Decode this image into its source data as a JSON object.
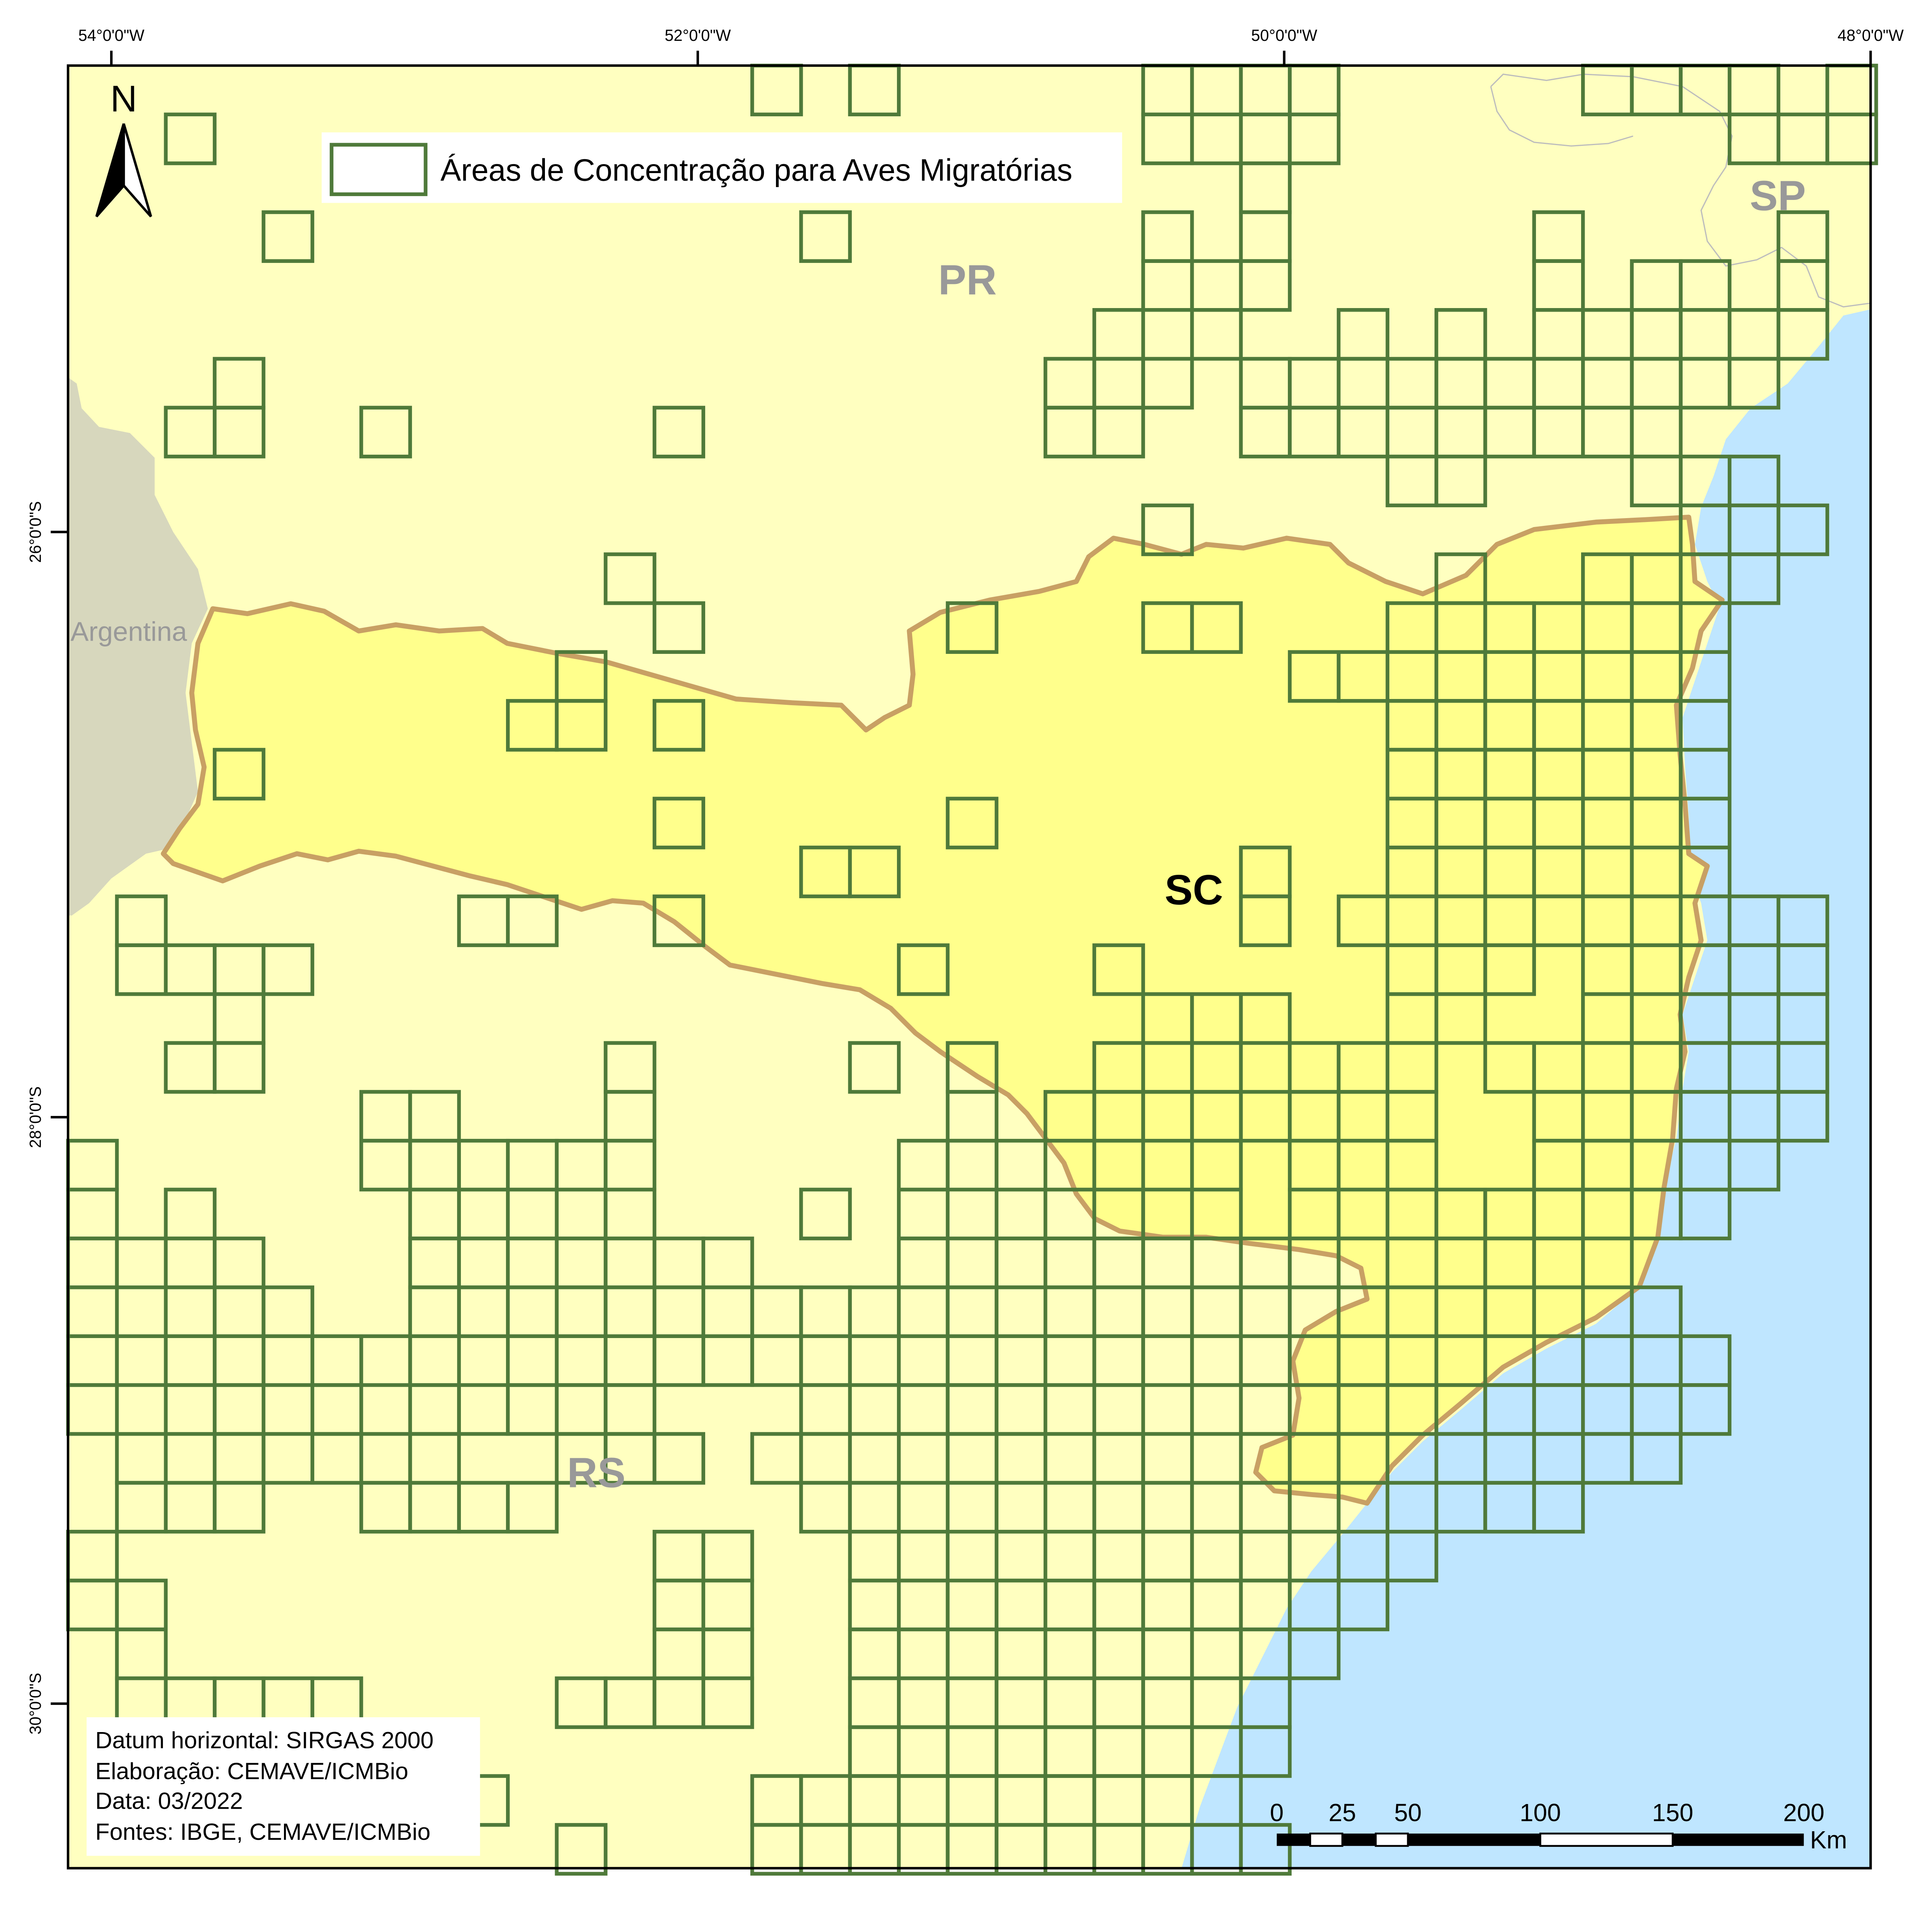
{
  "map": {
    "longitude_labels": [
      "54°0'0\"W",
      "52°0'0\"W",
      "50°0'0\"W",
      "48°0'0\"W"
    ],
    "latitude_labels": [
      "26°0'0\"S",
      "28°0'0\"S",
      "30°0'0\"S"
    ],
    "north_arrow_label": "N",
    "legend": {
      "label": "Áreas de Concentração para Aves Migratórias"
    },
    "region_labels": {
      "pr": "PR",
      "sp": "SP",
      "sc": "SC",
      "rs": "RS",
      "argentina": "Argentina"
    },
    "info_box": {
      "datum": "Datum horizontal: SIRGAS 2000",
      "elaboration": "Elaboração: CEMAVE/ICMBio",
      "date": "Data: 03/2022",
      "sources": "Fontes: IBGE, CEMAVE/ICMBio"
    },
    "scale_bar": {
      "tick_labels": [
        "0",
        "25",
        "50",
        "100",
        "150",
        "200"
      ],
      "unit": "Km"
    },
    "colors": {
      "land_other": "#ffffc0",
      "santa_catarina": "#ffff8c",
      "ocean": "#bfe6ff",
      "argentina": "#d7d7bd",
      "grid_cells": "#4f7a3a",
      "sc_border": "#c8a064",
      "region_label_gray": "#999999"
    }
  }
}
